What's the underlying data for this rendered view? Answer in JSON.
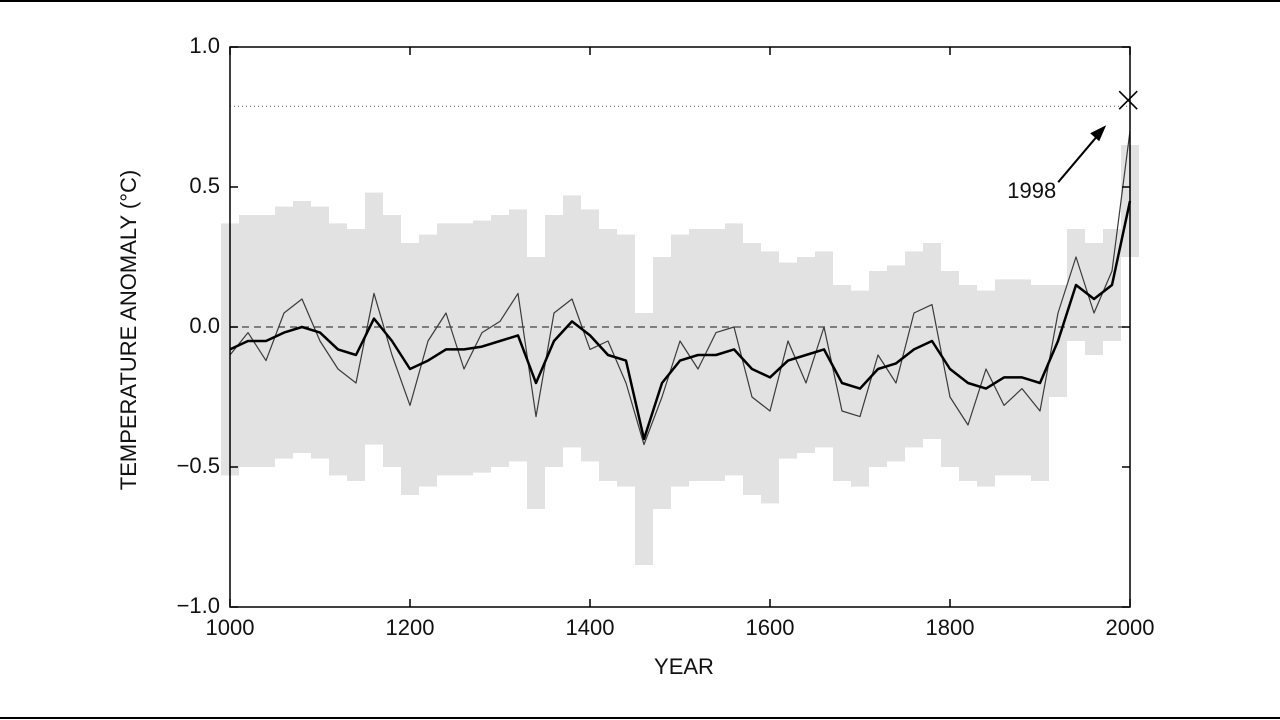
{
  "chart_data": {
    "type": "line",
    "x_label": "YEAR",
    "y_label": "TEMPERATURE ANOMALY (°C)",
    "x": [
      1000,
      1020,
      1040,
      1060,
      1080,
      1100,
      1120,
      1140,
      1160,
      1180,
      1200,
      1220,
      1240,
      1260,
      1280,
      1300,
      1320,
      1340,
      1360,
      1380,
      1400,
      1420,
      1440,
      1460,
      1480,
      1500,
      1520,
      1540,
      1560,
      1580,
      1600,
      1620,
      1640,
      1660,
      1680,
      1700,
      1720,
      1740,
      1760,
      1780,
      1800,
      1820,
      1840,
      1860,
      1880,
      1900,
      1920,
      1940,
      1960,
      1980,
      2000
    ],
    "band": {
      "color": "#e2e2e2",
      "upper": [
        0.37,
        0.4,
        0.4,
        0.43,
        0.45,
        0.43,
        0.37,
        0.35,
        0.48,
        0.4,
        0.3,
        0.33,
        0.37,
        0.37,
        0.38,
        0.4,
        0.42,
        0.25,
        0.4,
        0.47,
        0.42,
        0.35,
        0.33,
        0.05,
        0.25,
        0.33,
        0.35,
        0.35,
        0.37,
        0.3,
        0.27,
        0.23,
        0.25,
        0.27,
        0.15,
        0.13,
        0.2,
        0.22,
        0.27,
        0.3,
        0.2,
        0.15,
        0.13,
        0.17,
        0.17,
        0.15,
        0.15,
        0.35,
        0.3,
        0.35,
        0.65
      ],
      "lower": [
        -0.53,
        -0.5,
        -0.5,
        -0.47,
        -0.45,
        -0.47,
        -0.53,
        -0.55,
        -0.42,
        -0.5,
        -0.6,
        -0.57,
        -0.53,
        -0.53,
        -0.52,
        -0.5,
        -0.48,
        -0.65,
        -0.5,
        -0.43,
        -0.48,
        -0.55,
        -0.57,
        -0.85,
        -0.65,
        -0.57,
        -0.55,
        -0.55,
        -0.53,
        -0.6,
        -0.63,
        -0.47,
        -0.45,
        -0.43,
        -0.55,
        -0.57,
        -0.5,
        -0.48,
        -0.43,
        -0.4,
        -0.5,
        -0.55,
        -0.57,
        -0.53,
        -0.53,
        -0.55,
        -0.25,
        -0.05,
        -0.1,
        -0.05,
        0.25
      ]
    },
    "series": [
      {
        "color": "#3a3a3a",
        "width": 1.2,
        "values": [
          -0.1,
          -0.02,
          -0.12,
          0.05,
          0.1,
          -0.05,
          -0.15,
          -0.2,
          0.12,
          -0.1,
          -0.28,
          -0.05,
          0.05,
          -0.15,
          -0.02,
          0.02,
          0.12,
          -0.32,
          0.05,
          0.1,
          -0.08,
          -0.05,
          -0.2,
          -0.42,
          -0.25,
          -0.05,
          -0.15,
          -0.02,
          0.0,
          -0.25,
          -0.3,
          -0.05,
          -0.2,
          0.0,
          -0.3,
          -0.32,
          -0.1,
          -0.2,
          0.05,
          0.08,
          -0.25,
          -0.35,
          -0.15,
          -0.28,
          -0.22,
          -0.3,
          0.05,
          0.25,
          0.05,
          0.2,
          0.7
        ]
      },
      {
        "color": "#000000",
        "width": 2.5,
        "values": [
          -0.08,
          -0.05,
          -0.05,
          -0.02,
          0.0,
          -0.02,
          -0.08,
          -0.1,
          0.03,
          -0.05,
          -0.15,
          -0.12,
          -0.08,
          -0.08,
          -0.07,
          -0.05,
          -0.03,
          -0.2,
          -0.05,
          0.02,
          -0.03,
          -0.1,
          -0.12,
          -0.4,
          -0.2,
          -0.12,
          -0.1,
          -0.1,
          -0.08,
          -0.15,
          -0.18,
          -0.12,
          -0.1,
          -0.08,
          -0.2,
          -0.22,
          -0.15,
          -0.13,
          -0.08,
          -0.05,
          -0.15,
          -0.2,
          -0.22,
          -0.18,
          -0.18,
          -0.2,
          -0.05,
          0.15,
          0.1,
          0.15,
          0.45
        ]
      }
    ],
    "annotations": [
      {
        "text": "1998",
        "x": 1998,
        "y": 0.81
      }
    ],
    "xlim": [
      1000,
      2000
    ],
    "xticks": [
      1000,
      1200,
      1400,
      1600,
      1800,
      2000
    ],
    "ylim": [
      -1,
      1
    ],
    "yticks": [
      {
        "value": -1,
        "label": "−1.0"
      },
      {
        "value": -0.5,
        "label": "−0.5"
      },
      {
        "value": 0,
        "label": "0.0"
      },
      {
        "value": 0.5,
        "label": "0.5"
      },
      {
        "value": 1,
        "label": "1.0"
      }
    ],
    "zero_line": true
  }
}
